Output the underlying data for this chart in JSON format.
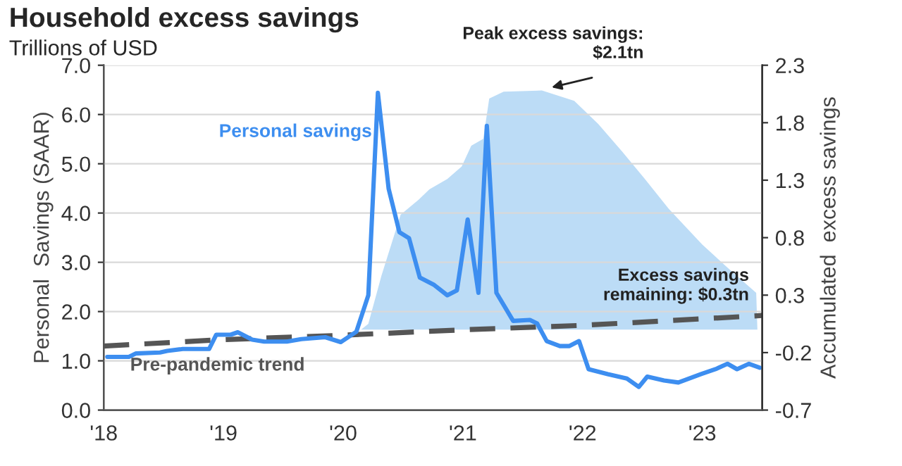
{
  "chart_data": {
    "type": "line",
    "title": "Household excess savings",
    "subtitle": "Trillions of USD",
    "ylabel": "Personal  Savings (SAAR)",
    "y2label": "Accumulated  excess savings",
    "xlim": [
      2018,
      2023.5
    ],
    "xticks": [
      {
        "value": 2018,
        "label": "'18"
      },
      {
        "value": 2019,
        "label": "'19"
      },
      {
        "value": 2020,
        "label": "'20"
      },
      {
        "value": 2021,
        "label": "'21"
      },
      {
        "value": 2022,
        "label": "'22"
      },
      {
        "value": 2023,
        "label": "'23"
      }
    ],
    "ylim": [
      0,
      7
    ],
    "yticks": [
      {
        "value": 0,
        "label": "0.0"
      },
      {
        "value": 1,
        "label": "1.0"
      },
      {
        "value": 2,
        "label": "2.0"
      },
      {
        "value": 3,
        "label": "3.0"
      },
      {
        "value": 4,
        "label": "4.0"
      },
      {
        "value": 5,
        "label": "5.0"
      },
      {
        "value": 6,
        "label": "6.0"
      },
      {
        "value": 7,
        "label": "7.0"
      }
    ],
    "y2lim": [
      -0.7,
      2.3
    ],
    "y2ticks": [
      -0.7,
      -0.2,
      0.3,
      0.8,
      1.3,
      1.8,
      2.3
    ],
    "grid": "y",
    "legend": false,
    "series": [
      {
        "type": "area",
        "axis": "y2",
        "color": "#bcdcf6",
        "x": [
          2020.15,
          2020.21,
          2020.32,
          2020.48,
          2020.63,
          2020.72,
          2020.87,
          2020.99,
          2021.07,
          2021.17,
          2021.22,
          2021.34,
          2021.66,
          2021.93,
          2022.13,
          2022.33,
          2022.52,
          2022.72,
          2023.0,
          2023.23,
          2023.45,
          2023.46
        ],
        "values": [
          0,
          0.05,
          0.47,
          1.0,
          1.13,
          1.22,
          1.31,
          1.42,
          1.6,
          1.66,
          2.01,
          2.07,
          2.08,
          1.99,
          1.79,
          1.55,
          1.31,
          1.05,
          0.74,
          0.52,
          0.32,
          0
        ]
      },
      {
        "name": "Pre-pandemic trend",
        "color": "#555555",
        "line_style": "dashed",
        "x": [
          2018.0,
          2019.0,
          2020.0,
          2021.0,
          2022.0,
          2023.5
        ],
        "values": [
          1.3,
          1.43,
          1.52,
          1.63,
          1.72,
          1.92
        ]
      },
      {
        "name": "Personal savings",
        "color": "#3d8ef0",
        "line_style": "solid",
        "x": [
          2018.03,
          2018.21,
          2018.27,
          2018.47,
          2018.53,
          2018.66,
          2018.88,
          2018.94,
          2019.06,
          2019.12,
          2019.24,
          2019.34,
          2019.53,
          2019.65,
          2019.85,
          2019.98,
          2020.11,
          2020.21,
          2020.29,
          2020.38,
          2020.47,
          2020.55,
          2020.64,
          2020.76,
          2020.87,
          2020.95,
          2021.04,
          2021.13,
          2021.2,
          2021.28,
          2021.42,
          2021.56,
          2021.62,
          2021.7,
          2021.81,
          2021.89,
          2021.97,
          2022.05,
          2022.21,
          2022.37,
          2022.47,
          2022.54,
          2022.68,
          2022.8,
          2022.99,
          2023.11,
          2023.21,
          2023.29,
          2023.39,
          2023.48
        ],
        "values": [
          1.08,
          1.08,
          1.15,
          1.17,
          1.2,
          1.24,
          1.24,
          1.53,
          1.53,
          1.58,
          1.43,
          1.39,
          1.39,
          1.44,
          1.48,
          1.38,
          1.59,
          2.33,
          6.44,
          4.49,
          3.61,
          3.49,
          2.69,
          2.54,
          2.33,
          2.43,
          3.87,
          2.38,
          5.77,
          2.38,
          1.81,
          1.83,
          1.76,
          1.4,
          1.3,
          1.3,
          1.4,
          0.83,
          0.73,
          0.64,
          0.47,
          0.68,
          0.6,
          0.56,
          0.73,
          0.83,
          0.94,
          0.83,
          0.94,
          0.86
        ]
      }
    ],
    "annotations": [
      "Peak excess savings:\n$2.1tn",
      "Excess savings\nremaining: $0.3tn"
    ]
  }
}
